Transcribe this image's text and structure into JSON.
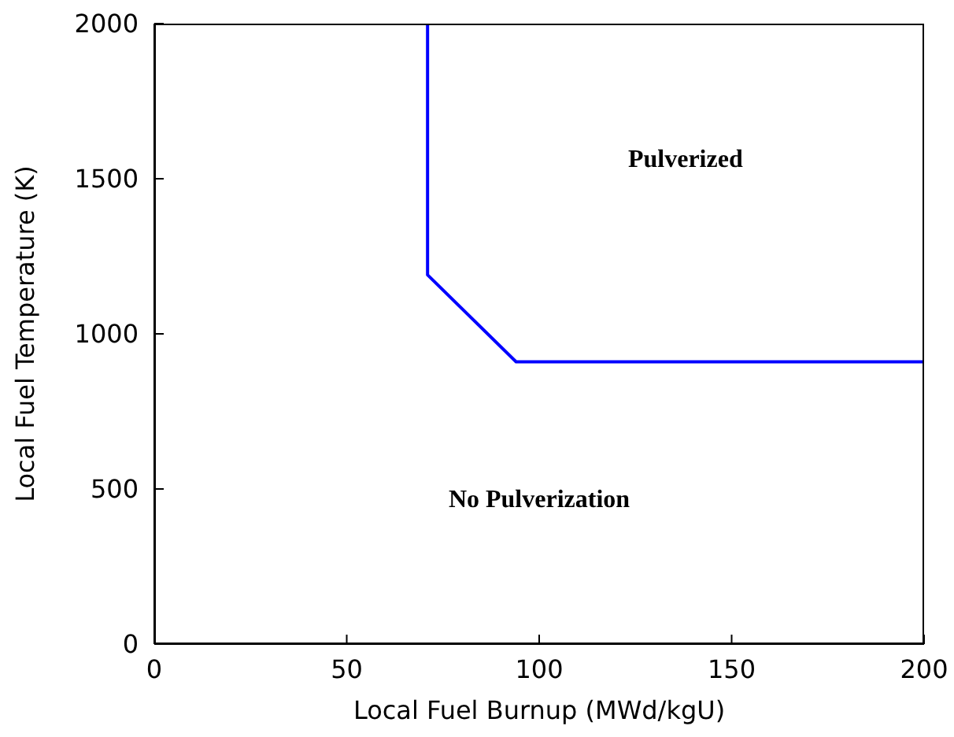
{
  "chart_data": {
    "type": "line",
    "xlabel": "Local Fuel Burnup (MWd/kgU)",
    "ylabel": "Local Fuel Temperature (K)",
    "x": [
      71,
      71,
      94,
      200
    ],
    "series": [
      {
        "color": "#0000ff",
        "values": [
          2000,
          1190,
          910,
          910
        ]
      }
    ],
    "xlim": [
      0,
      200
    ],
    "xticks": [
      0,
      50,
      100,
      150,
      200
    ],
    "ylim": [
      0,
      2000
    ],
    "yticks": [
      0,
      500,
      1000,
      1500,
      2000
    ],
    "grid": false,
    "legend": false,
    "marker": "none",
    "line_style": "solid",
    "annotations": [
      "Pulverized",
      "No Pulverization"
    ]
  }
}
